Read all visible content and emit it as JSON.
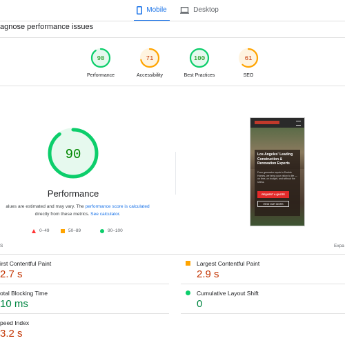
{
  "tabs": {
    "mobile": {
      "label": "Mobile",
      "icon": "phone-icon"
    },
    "desktop": {
      "label": "Desktop",
      "icon": "laptop-icon"
    }
  },
  "diagnose_title": "agnose performance issues",
  "categories": [
    {
      "label": "Performance",
      "score": "90",
      "score_value": 90,
      "color": "#0cce6b",
      "text_color": "#008800"
    },
    {
      "label": "Accessibility",
      "score": "71",
      "score_value": 71,
      "color": "#ffa400",
      "text_color": "#c33300"
    },
    {
      "label": "Best Practices",
      "score": "100",
      "score_value": 100,
      "color": "#0cce6b",
      "text_color": "#008800"
    },
    {
      "label": "SEO",
      "score": "61",
      "score_value": 61,
      "color": "#ffa400",
      "text_color": "#c33300"
    }
  ],
  "main": {
    "score": "90",
    "score_value": 90,
    "label": "Performance",
    "note_prefix": "alues are estimated and may vary. The ",
    "note_link1": "performance score is calculated",
    "note_mid": "directly from these metrics. ",
    "note_link2": "See calculator",
    "note_suffix": "."
  },
  "legend": {
    "fail": "0–49",
    "average": "50–89",
    "pass": "90–100"
  },
  "screenshot": {
    "headline": "Los Angeles' Leading Construction & Renovation Experts",
    "body": "From generator repair to Double Homes, we bring your vision to life — on time, on budget, and without the stress.",
    "cta_primary": "REQUEST A QUOTE",
    "cta_secondary": "VIEW OUR WORK"
  },
  "metrics_header": {
    "label": "S",
    "expand": "Expa"
  },
  "metrics": {
    "fcp": {
      "name": "irst Contentful Paint",
      "value": "2.7 s"
    },
    "lcp": {
      "name": "Largest Contentful Paint",
      "value": "2.9 s"
    },
    "tbt": {
      "name": "otal Blocking Time",
      "value": "10 ms"
    },
    "cls": {
      "name": "Cumulative Layout Shift",
      "value": "0"
    },
    "si": {
      "name": "peed Index",
      "value": "3.2 s"
    }
  },
  "colors": {
    "accent": "#1a73e8",
    "pass": "#0cce6b",
    "average": "#ffa400",
    "fail": "#ff3333"
  }
}
